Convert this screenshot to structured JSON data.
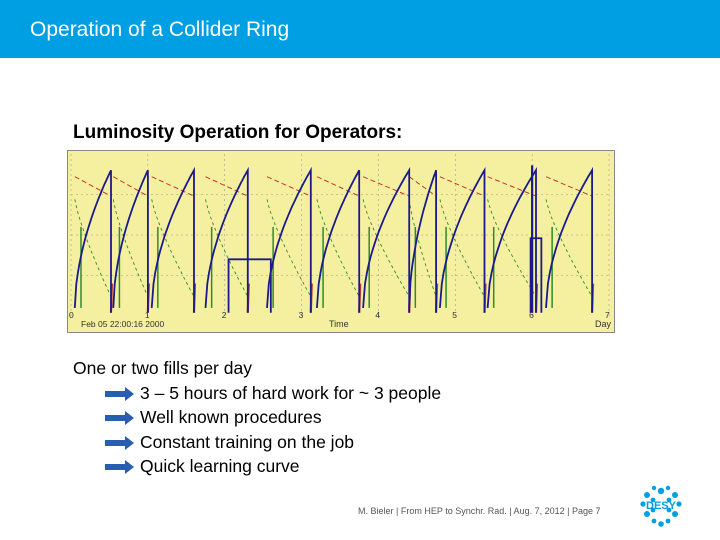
{
  "header": {
    "title": "Operation of a Collider Ring"
  },
  "subtitle": "Luminosity Operation for Operators:",
  "bullets": {
    "intro": "One or two fills per day",
    "items": [
      "3 – 5 hours of hard work for ~ 3 people",
      "Well known procedures",
      "Constant training on the job",
      "Quick learning curve"
    ]
  },
  "footer": "M. Bieler  |  From HEP to Synchr. Rad.  |  Aug. 7, 2012  |  Page 7",
  "logo": {
    "text": "DESY"
  },
  "colors": {
    "header": "#009fe3",
    "plot_bg": "#f5f0a0",
    "lumi": "#1a1a8c",
    "current": "#c0392b",
    "bg_green": "#2e8b2e",
    "arrow": "#2a5db0"
  },
  "chart_data": {
    "type": "line",
    "x_tick_labels": [
      "0",
      "1",
      "2",
      "3",
      "4",
      "5",
      "6",
      "7"
    ],
    "x_start_label": "Feb 05 22:00:16 2000",
    "xlabel": "Time",
    "x_unit": "Day",
    "xlim": [
      0,
      7
    ],
    "grid": true,
    "series": [
      {
        "color_key": "lumi",
        "fills": [
          [
            0.05,
            0.52
          ],
          [
            0.55,
            1.0
          ],
          [
            1.05,
            1.6
          ],
          [
            1.75,
            2.3
          ],
          [
            2.55,
            3.12
          ],
          [
            3.2,
            3.75
          ],
          [
            3.8,
            4.4
          ],
          [
            4.4,
            4.75
          ],
          [
            4.8,
            5.38
          ],
          [
            5.42,
            6.05
          ],
          [
            6.18,
            6.78
          ]
        ],
        "plateaus": [
          [
            2.05,
            2.6,
            0.35
          ],
          [
            5.98,
            6.12,
            0.48
          ]
        ]
      },
      {
        "color_key": "current"
      },
      {
        "color_key": "bg_green"
      }
    ]
  }
}
